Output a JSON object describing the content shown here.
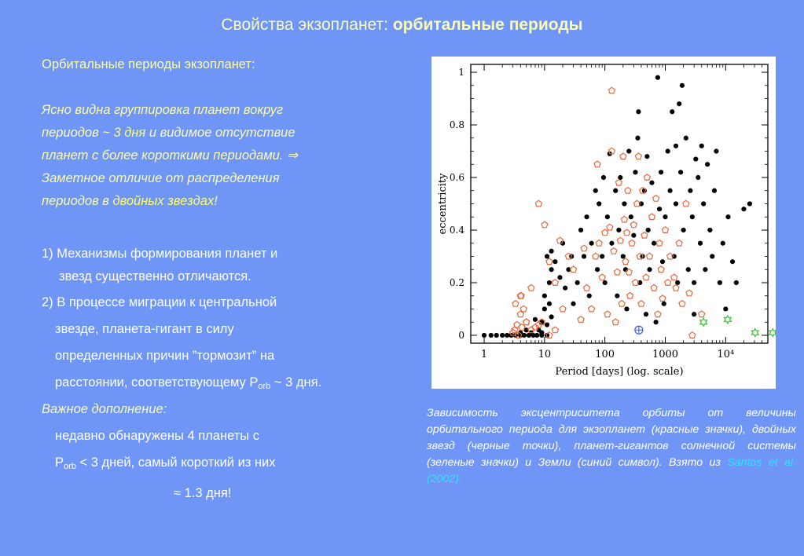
{
  "title": {
    "normal": "Свойства экзопланет: ",
    "bold": "орбитальные периоды"
  },
  "left": {
    "header": "Орбитальные периоды экзопланет:",
    "para": [
      {
        "a": "Ясно видна группировка планет вокруг"
      },
      {
        "a": "периодов ~ ",
        "hl": "3 дня",
        "b": " и видимое отсутствие"
      },
      {
        "a": "планет с более короткими периодами. ⇒"
      },
      {
        "a": "Заметное отличие от распределения"
      },
      {
        "a": "периодов в ",
        "hl": "двойных звездах",
        "b": "!"
      }
    ],
    "item1": [
      "1) Механизмы формирования планет и",
      "звезд существенно отличаются."
    ],
    "item2": [
      "2) В процессе миграции к центральной",
      "звезде, планета-гигант в силу",
      "определенных причин ”тормозит” на",
      "расстоянии, соответствующему P",
      "orb",
      " ~ 3 дня."
    ],
    "important": "Важное дополнение:",
    "add": [
      "недавно обнаружены 4 планеты с",
      "P",
      "orb",
      " < 3 дней, самый короткий  из них",
      "≈ 1.3 дня!"
    ]
  },
  "caption": {
    "text": "Зависимость эксцентриситета орбиты от величины орбитального периода для экзопланет (красные значки), двойных звезд (черные точки), планет-гигантов солнечной системы (зеленые значки) и Земли (синий символ). Взято из ",
    "link": "Santos et al. (2002)."
  },
  "chart_data": {
    "type": "scatter",
    "xlabel": "Period [days] (log. scale)",
    "ylabel": "eccentricity",
    "xscale": "log",
    "xlim": [
      0.6,
      50000
    ],
    "ylim": [
      -0.03,
      1.03
    ],
    "xticks": [
      {
        "v": 1,
        "t": "1"
      },
      {
        "v": 10,
        "t": "10"
      },
      {
        "v": 100,
        "t": "100"
      },
      {
        "v": 1000,
        "t": "1000"
      },
      {
        "v": 10000,
        "t": "10⁴"
      }
    ],
    "yticks": [
      {
        "v": 0,
        "t": "0"
      },
      {
        "v": 0.2,
        "t": "0.2"
      },
      {
        "v": 0.4,
        "t": "0.4"
      },
      {
        "v": 0.6,
        "t": "0.6"
      },
      {
        "v": 0.8,
        "t": "0.8"
      },
      {
        "v": 1,
        "t": "1"
      }
    ],
    "colors": {
      "exoplanets": "#e8683a",
      "binaries": "#000000",
      "solar_giants": "#3bbf3b",
      "earth": "#3b5fd6"
    },
    "series": [
      {
        "key": "binaries",
        "marker": "dot",
        "points": [
          [
            1,
            0
          ],
          [
            1.3,
            0
          ],
          [
            1.6,
            0
          ],
          [
            2,
            0
          ],
          [
            2.4,
            0
          ],
          [
            2.8,
            0
          ],
          [
            3.3,
            0
          ],
          [
            4,
            0
          ],
          [
            4.6,
            0
          ],
          [
            5.5,
            0
          ],
          [
            6.5,
            0
          ],
          [
            7.5,
            0
          ],
          [
            9,
            0
          ],
          [
            11,
            0
          ],
          [
            4,
            0.01
          ],
          [
            5,
            0.02
          ],
          [
            6,
            0.01
          ],
          [
            8,
            0.02
          ],
          [
            9,
            0.01
          ],
          [
            7,
            0.06
          ],
          [
            9,
            0.05
          ],
          [
            11,
            0.04
          ],
          [
            13,
            0.07
          ],
          [
            10,
            0.1
          ],
          [
            12,
            0.12
          ],
          [
            10,
            0.15
          ],
          [
            12,
            0.2
          ],
          [
            13,
            0.25
          ],
          [
            11,
            0.3
          ],
          [
            13,
            0.32
          ],
          [
            15,
            0.28
          ],
          [
            18,
            0.22
          ],
          [
            20,
            0.35
          ],
          [
            22,
            0.18
          ],
          [
            25,
            0.25
          ],
          [
            28,
            0.3
          ],
          [
            30,
            0.12
          ],
          [
            35,
            0.2
          ],
          [
            40,
            0.4
          ],
          [
            45,
            0.3
          ],
          [
            50,
            0.45
          ],
          [
            55,
            0.15
          ],
          [
            60,
            0.35
          ],
          [
            70,
            0.55
          ],
          [
            75,
            0.25
          ],
          [
            80,
            0.5
          ],
          [
            90,
            0.3
          ],
          [
            95,
            0.6
          ],
          [
            100,
            0.2
          ],
          [
            110,
            0.45
          ],
          [
            120,
            0.69
          ],
          [
            130,
            0.35
          ],
          [
            150,
            0.55
          ],
          [
            160,
            0.15
          ],
          [
            170,
            0.4
          ],
          [
            180,
            0.6
          ],
          [
            200,
            0.3
          ],
          [
            210,
            0.5
          ],
          [
            220,
            0.25
          ],
          [
            230,
            0.1
          ],
          [
            250,
            0.7
          ],
          [
            270,
            0.45
          ],
          [
            300,
            0.38
          ],
          [
            320,
            0.62
          ],
          [
            350,
            0.75
          ],
          [
            360,
            0.85
          ],
          [
            380,
            0.2
          ],
          [
            400,
            0.5
          ],
          [
            420,
            0.3
          ],
          [
            450,
            0.55
          ],
          [
            480,
            0.08
          ],
          [
            500,
            0.68
          ],
          [
            520,
            0.4
          ],
          [
            550,
            0.25
          ],
          [
            600,
            0.58
          ],
          [
            650,
            0.35
          ],
          [
            700,
            0.05
          ],
          [
            750,
            0.98
          ],
          [
            800,
            0.48
          ],
          [
            850,
            0.62
          ],
          [
            900,
            0.28
          ],
          [
            950,
            0.12
          ],
          [
            1000,
            0.45
          ],
          [
            1100,
            0.7
          ],
          [
            1200,
            0.55
          ],
          [
            1300,
            0.85
          ],
          [
            1400,
            0.3
          ],
          [
            1500,
            0.5
          ],
          [
            1600,
            0.2
          ],
          [
            1700,
            0.88
          ],
          [
            1800,
            0.62
          ],
          [
            1900,
            0.95
          ],
          [
            2000,
            0.4
          ],
          [
            2200,
            0.75
          ],
          [
            2400,
            0.25
          ],
          [
            2600,
            0.55
          ],
          [
            2800,
            0.45
          ],
          [
            3000,
            0.2
          ],
          [
            3200,
            0.67
          ],
          [
            3500,
            0.6
          ],
          [
            3800,
            0.35
          ],
          [
            4000,
            0.72
          ],
          [
            4300,
            0.5
          ],
          [
            4600,
            0.25
          ],
          [
            5000,
            0.65
          ],
          [
            5500,
            0.4
          ],
          [
            6000,
            0.3
          ],
          [
            6500,
            0.55
          ],
          [
            7000,
            0.7
          ],
          [
            8000,
            0.2
          ],
          [
            9000,
            0.35
          ],
          [
            10000,
            0.1
          ],
          [
            11000,
            0.45
          ],
          [
            13000,
            0.28
          ],
          [
            15000,
            0.2
          ],
          [
            20000,
            0.48
          ],
          [
            25000,
            0.5
          ],
          [
            3000,
            0.08
          ],
          [
            1500,
            0.72
          ]
        ]
      },
      {
        "key": "exoplanets",
        "marker": "open-pentagon",
        "points": [
          [
            3,
            0.01
          ],
          [
            3.2,
            0.02
          ],
          [
            3.5,
            0.04
          ],
          [
            3.7,
            0.0
          ],
          [
            4,
            0.08
          ],
          [
            4.2,
            0.03
          ],
          [
            4.5,
            0.1
          ],
          [
            3.3,
            0.12
          ],
          [
            4.1,
            0.15
          ],
          [
            5,
            0.05
          ],
          [
            6,
            0.02
          ],
          [
            7,
            0.03
          ],
          [
            8,
            0.04
          ],
          [
            9,
            0.05
          ],
          [
            12,
            0.0
          ],
          [
            15,
            0.02
          ],
          [
            4,
            0.15
          ],
          [
            6,
            0.18
          ],
          [
            8,
            0.5
          ],
          [
            15,
            0.2
          ],
          [
            20,
            0.1
          ],
          [
            25,
            0.3
          ],
          [
            30,
            0.25
          ],
          [
            40,
            0.06
          ],
          [
            45,
            0.33
          ],
          [
            50,
            0.18
          ],
          [
            60,
            0.1
          ],
          [
            70,
            0.3
          ],
          [
            75,
            0.65
          ],
          [
            80,
            0.35
          ],
          [
            90,
            0.22
          ],
          [
            100,
            0.39
          ],
          [
            110,
            0.08
          ],
          [
            120,
            0.41
          ],
          [
            130,
            0.7
          ],
          [
            140,
            0.32
          ],
          [
            150,
            0.05
          ],
          [
            160,
            0.24
          ],
          [
            170,
            0.58
          ],
          [
            180,
            0.36
          ],
          [
            190,
            0.12
          ],
          [
            200,
            0.68
          ],
          [
            210,
            0.44
          ],
          [
            220,
            0.28
          ],
          [
            230,
            0.39
          ],
          [
            240,
            0.55
          ],
          [
            250,
            0.24
          ],
          [
            260,
            0.15
          ],
          [
            280,
            0.35
          ],
          [
            300,
            0.42
          ],
          [
            320,
            0.2
          ],
          [
            340,
            0.5
          ],
          [
            360,
            0.68
          ],
          [
            380,
            0.3
          ],
          [
            400,
            0.12
          ],
          [
            420,
            0.55
          ],
          [
            450,
            0.38
          ],
          [
            480,
            0.22
          ],
          [
            500,
            0.6
          ],
          [
            550,
            0.3
          ],
          [
            600,
            0.45
          ],
          [
            650,
            0.18
          ],
          [
            700,
            0.52
          ],
          [
            750,
            0.08
          ],
          [
            800,
            0.35
          ],
          [
            850,
            0.25
          ],
          [
            900,
            0.14
          ],
          [
            1000,
            0.4
          ],
          [
            1100,
            0.2
          ],
          [
            1200,
            0.3
          ],
          [
            1400,
            0.22
          ],
          [
            1500,
            0.18
          ],
          [
            1700,
            0.35
          ],
          [
            1900,
            0.12
          ],
          [
            2200,
            0.5
          ],
          [
            2500,
            0.16
          ],
          [
            2800,
            0.0
          ],
          [
            4000,
            0.08
          ],
          [
            130,
            0.93
          ],
          [
            5,
            0.05
          ],
          [
            12,
            0.28
          ],
          [
            18,
            0.36
          ],
          [
            10,
            0.42
          ]
        ]
      },
      {
        "key": "solar_giants",
        "marker": "open-star",
        "points": [
          [
            4300,
            0.05
          ],
          [
            10800,
            0.06
          ],
          [
            30700,
            0.01
          ],
          [
            60200,
            0.01
          ]
        ]
      },
      {
        "key": "earth",
        "marker": "circle-plus",
        "points": [
          [
            365,
            0.02
          ]
        ]
      }
    ]
  }
}
